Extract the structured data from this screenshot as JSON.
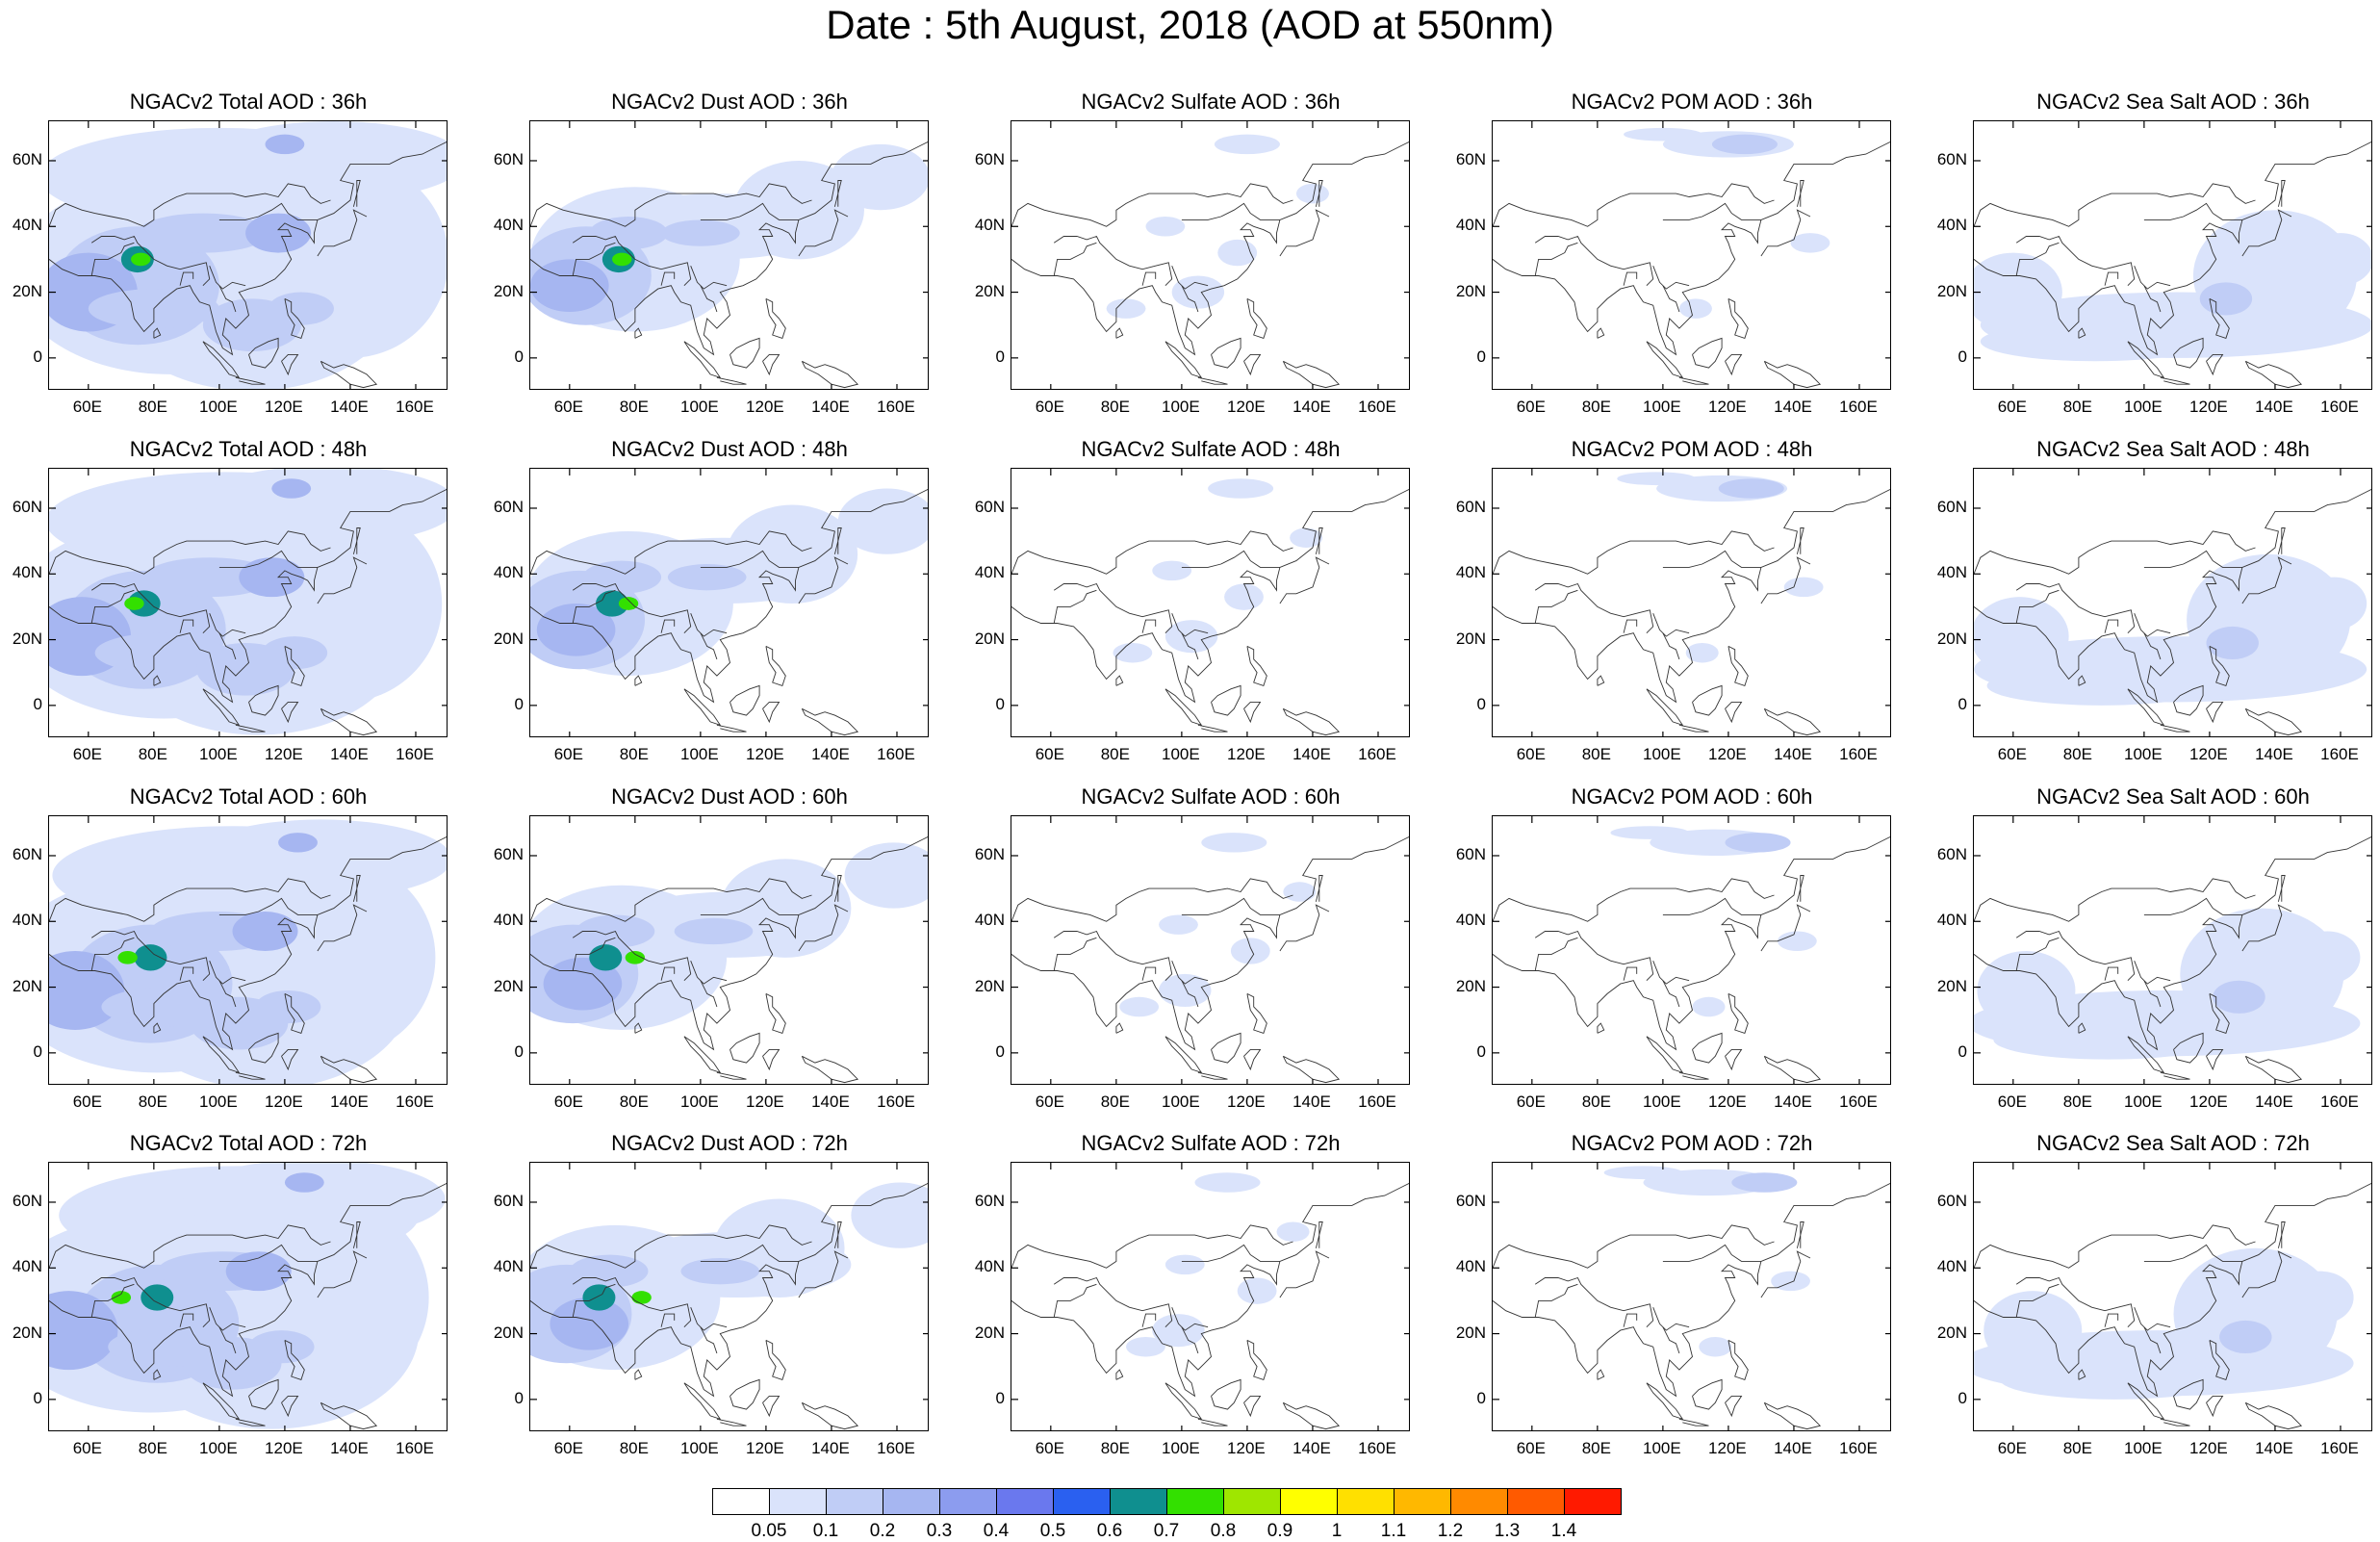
{
  "title": "Date : 5th August, 2018 (AOD at 550nm)",
  "panels": [
    [
      "NGACv2 Total AOD : 36h",
      "NGACv2 Dust AOD : 36h",
      "NGACv2 Sulfate AOD : 36h",
      "NGACv2 POM AOD : 36h",
      "NGACv2 Sea Salt AOD : 36h"
    ],
    [
      "NGACv2 Total AOD : 48h",
      "NGACv2 Dust AOD : 48h",
      "NGACv2 Sulfate AOD : 48h",
      "NGACv2 POM AOD : 48h",
      "NGACv2 Sea Salt AOD : 48h"
    ],
    [
      "NGACv2 Total AOD : 60h",
      "NGACv2 Dust AOD : 60h",
      "NGACv2 Sulfate AOD : 60h",
      "NGACv2 POM AOD : 60h",
      "NGACv2 Sea Salt AOD : 60h"
    ],
    [
      "NGACv2 Total AOD : 72h",
      "NGACv2 Dust AOD : 72h",
      "NGACv2 Sulfate AOD : 72h",
      "NGACv2 POM AOD : 72h",
      "NGACv2 Sea Salt  AOD : 72h"
    ]
  ],
  "lat_ticks": [
    "60N",
    "40N",
    "20N",
    "0"
  ],
  "lon_ticks": [
    "60E",
    "80E",
    "100E",
    "120E",
    "140E",
    "160E"
  ],
  "colorbar": {
    "labels": [
      "0.05",
      "0.1",
      "0.2",
      "0.3",
      "0.4",
      "0.5",
      "0.6",
      "0.7",
      "0.8",
      "0.9",
      "1",
      "1.1",
      "1.2",
      "1.3",
      "1.4"
    ],
    "colors": [
      "#ffffff",
      "#dae3fb",
      "#c0cdf6",
      "#a6b6f1",
      "#8c9cef",
      "#6a78ee",
      "#2a60f0",
      "#0f8f8f",
      "#33e000",
      "#9fe600",
      "#ffff00",
      "#ffe000",
      "#ffb800",
      "#ff8a00",
      "#ff5a00",
      "#ff1a00"
    ]
  }
}
